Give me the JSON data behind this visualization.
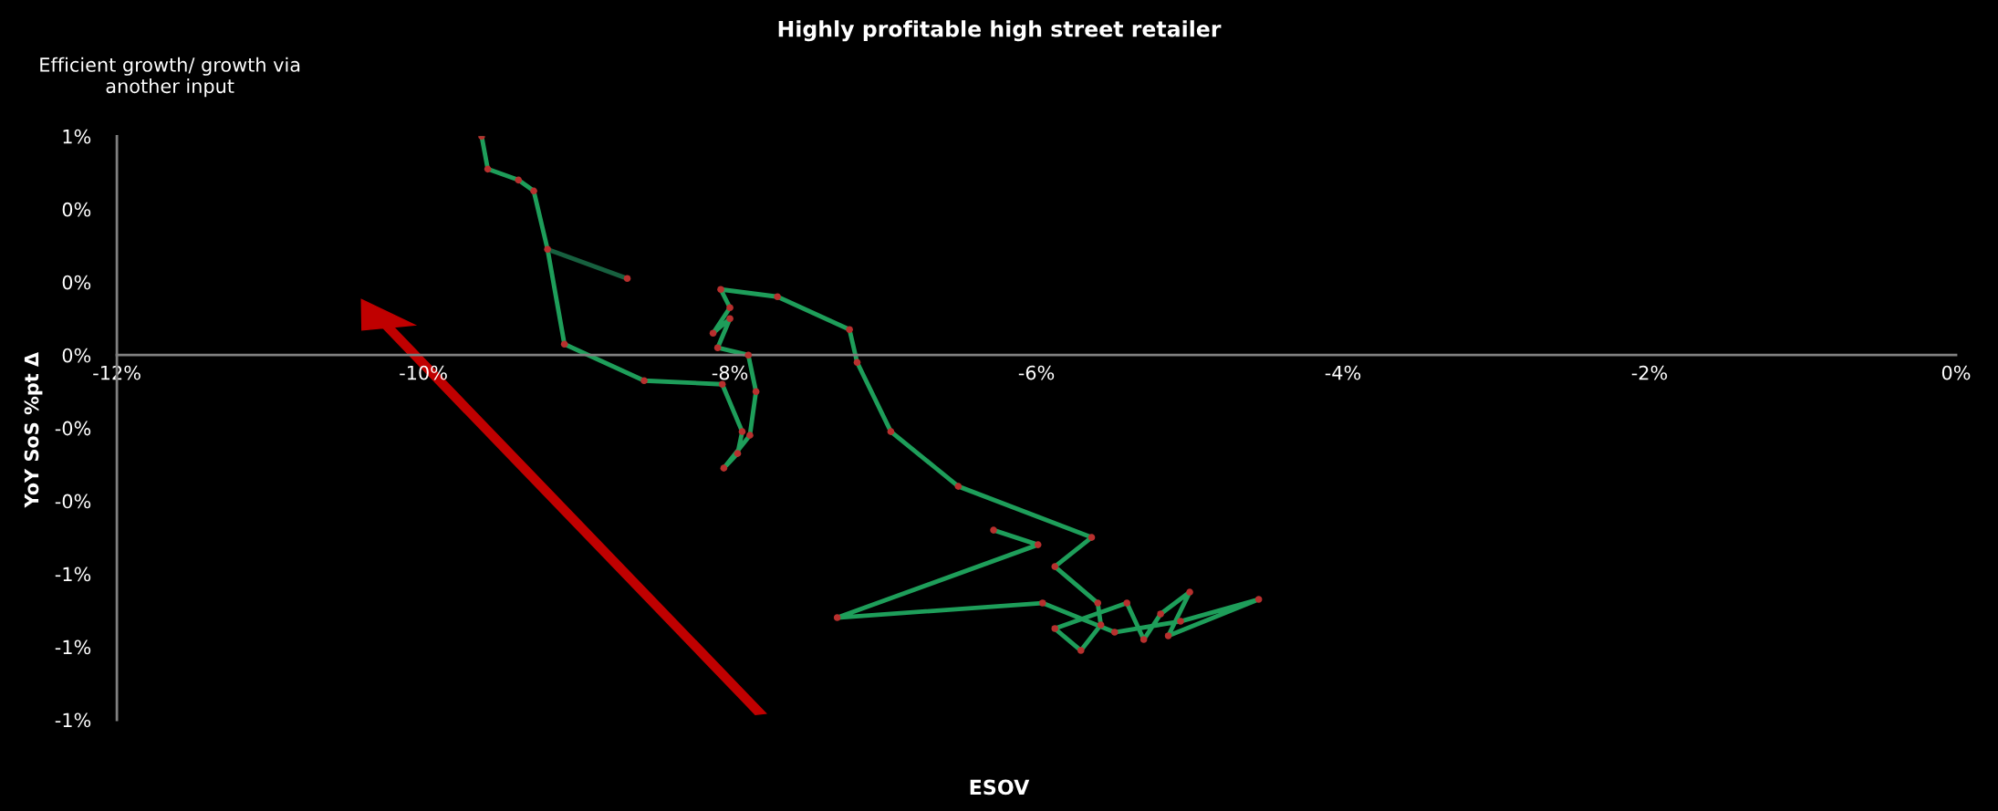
{
  "chart_data": {
    "type": "line",
    "title": "Highly profitable high street retailer",
    "xlabel": "ESOV",
    "ylabel": "YoY SoS %pt Δ",
    "annotations": [
      "Efficient growth/ growth via another input"
    ],
    "series": [
      {
        "color": "#1e9e5a",
        "x": [
          -9.62,
          -9.58,
          -9.38,
          -9.28,
          -9.19,
          -9.08,
          -8.56,
          -8.05,
          -7.92,
          -7.95,
          -8.04,
          -7.87,
          -7.83,
          -7.88,
          -8.08,
          -8.0,
          -8.11,
          -8.0,
          -8.06,
          -7.69,
          -7.22,
          -7.17,
          -6.95,
          -6.51,
          -5.64,
          -5.88,
          -5.6,
          -5.58,
          -5.71,
          -5.88,
          -5.41,
          -5.3,
          -5.19,
          -5.0,
          -5.14,
          -4.55,
          -5.06,
          -5.49,
          -5.96,
          -7.3,
          -5.99,
          -6.28
        ],
        "values": [
          0.6,
          0.51,
          0.48,
          0.45,
          0.29,
          0.03,
          -0.07,
          -0.08,
          -0.21,
          -0.27,
          -0.31,
          -0.22,
          -0.1,
          0.0,
          0.02,
          0.1,
          0.06,
          0.13,
          0.18,
          0.16,
          0.07,
          -0.02,
          -0.21,
          -0.36,
          -0.5,
          -0.58,
          -0.68,
          -0.74,
          -0.81,
          -0.75,
          -0.68,
          -0.78,
          -0.71,
          -0.65,
          -0.77,
          -0.67,
          -0.73,
          -0.76,
          -0.68,
          -0.72,
          -0.52,
          -0.48
        ]
      },
      {
        "color": "#17603f",
        "x": [
          -9.19,
          -8.67
        ],
        "values": [
          0.29,
          0.21
        ]
      },
      {
        "type": "scatter",
        "marker": "circle",
        "color": "#b8302e",
        "x": [
          -9.62,
          -9.58,
          -9.38,
          -9.28,
          -9.19,
          -9.08,
          -8.56,
          -8.05,
          -7.92,
          -7.95,
          -8.04,
          -7.87,
          -7.83,
          -7.88,
          -8.08,
          -8.0,
          -8.11,
          -8.0,
          -8.06,
          -7.69,
          -7.22,
          -7.17,
          -6.95,
          -6.51,
          -5.64,
          -5.88,
          -5.6,
          -5.58,
          -5.71,
          -5.88,
          -5.41,
          -5.3,
          -5.19,
          -5.0,
          -5.14,
          -4.55,
          -5.06,
          -5.49,
          -5.96,
          -7.3,
          -5.99,
          -6.28,
          -8.67
        ],
        "values": [
          0.6,
          0.51,
          0.48,
          0.45,
          0.29,
          0.03,
          -0.07,
          -0.08,
          -0.21,
          -0.27,
          -0.31,
          -0.22,
          -0.1,
          0.0,
          0.02,
          0.1,
          0.06,
          0.13,
          0.18,
          0.16,
          0.07,
          -0.02,
          -0.21,
          -0.36,
          -0.5,
          -0.58,
          -0.68,
          -0.74,
          -0.81,
          -0.75,
          -0.68,
          -0.78,
          -0.71,
          -0.65,
          -0.77,
          -0.67,
          -0.73,
          -0.76,
          -0.68,
          -0.72,
          -0.52,
          -0.48,
          0.21
        ]
      }
    ],
    "xlim": [
      -12,
      0
    ],
    "xticks": [
      {
        "value": -12,
        "label": "-12%"
      },
      {
        "value": -10,
        "label": "-10%"
      },
      {
        "value": -8,
        "label": "-8%"
      },
      {
        "value": -6,
        "label": "-6%"
      },
      {
        "value": -4,
        "label": "-4%"
      },
      {
        "value": -2,
        "label": "-2%"
      },
      {
        "value": 0,
        "label": "0%"
      }
    ],
    "ylim": [
      -1.0,
      0.6
    ],
    "yticks": [
      {
        "value": 0.6,
        "label": "1%"
      },
      {
        "value": 0.4,
        "label": "0%"
      },
      {
        "value": 0.2,
        "label": "0%"
      },
      {
        "value": 0,
        "label": "0%"
      },
      {
        "value": -0.2,
        "label": "-0%"
      },
      {
        "value": -0.4,
        "label": "-0%"
      },
      {
        "value": -0.6,
        "label": "-1%"
      },
      {
        "value": -0.8,
        "label": "-1%"
      },
      {
        "value": -1.0,
        "label": "-1%"
      }
    ],
    "grid": false,
    "legend": false
  }
}
